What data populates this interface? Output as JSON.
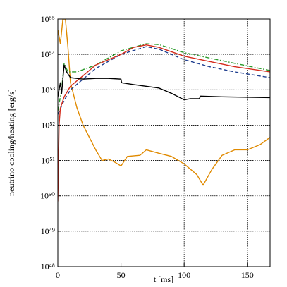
{
  "chart_data": {
    "type": "line",
    "xlabel": "t [ms]",
    "ylabel": "neutrino cooling/heating [erg/s]",
    "xlim": [
      0,
      168
    ],
    "xticks": [
      0,
      50,
      100,
      150
    ],
    "ylim": [
      1e+48,
      1e+55
    ],
    "yticks": [
      {
        "value": 1e+48,
        "label": "10⁴⁸"
      },
      {
        "value": 1e+49,
        "label": "10⁴⁹"
      },
      {
        "value": 1e+50,
        "label": "10⁵⁰"
      },
      {
        "value": 1e+51,
        "label": "10⁵¹"
      },
      {
        "value": 1e+52,
        "label": "10⁵²"
      },
      {
        "value": 1e+53,
        "label": "10⁵³"
      },
      {
        "value": 1e+54,
        "label": "10⁵⁴"
      },
      {
        "value": 1e+55,
        "label": "10⁵⁵"
      }
    ],
    "ylog": true,
    "grid": true,
    "series": [
      {
        "color": "#e08a00",
        "linestyle": "solid",
        "x": [
          0,
          2,
          4,
          6,
          8,
          10,
          15,
          20,
          30,
          35,
          40,
          45,
          50,
          55,
          65,
          70,
          80,
          90,
          100,
          110,
          115,
          122,
          130,
          140,
          150,
          160,
          168
        ],
        "values": [
          5e+54,
          2e+54,
          1e+55,
          1e+55,
          1.6e+54,
          1.6e+53,
          3.2e+52,
          1e+52,
          2e+51,
          1e+51,
          1.1e+51,
          9e+50,
          7e+50,
          1.3e+51,
          1.4e+51,
          2e+51,
          1.6e+51,
          1.3e+51,
          8e+50,
          4e+50,
          2e+50,
          5.6e+50,
          1.4e+51,
          2e+51,
          2e+51,
          2.8e+51,
          4.5e+51
        ]
      },
      {
        "color": "#1f3f8f",
        "linestyle": "dashed",
        "x": [
          0,
          5,
          10,
          20,
          30,
          50,
          70,
          80,
          100,
          120,
          140,
          168
        ],
        "values": [
          2e+52,
          5e+52,
          1e+53,
          2e+53,
          4e+53,
          1e+54,
          1.66e+54,
          1.41e+54,
          7.1e+53,
          4.5e+53,
          3.2e+53,
          2.2e+53
        ]
      },
      {
        "color": "#2a9a2a",
        "linestyle": "dashdot",
        "x": [
          0,
          3,
          5,
          8,
          15,
          30,
          50,
          70,
          80,
          100,
          120,
          140,
          168
        ],
        "values": [
          2.5e+52,
          1e+53,
          5.6e+53,
          3.2e+53,
          3.2e+53,
          5e+53,
          1.26e+54,
          2e+54,
          1.9e+54,
          1.12e+54,
          7.9e+53,
          5.6e+53,
          3.5e+53
        ]
      },
      {
        "color": "#d42a1a",
        "linestyle": "solid",
        "x": [
          0,
          1,
          2,
          5,
          10,
          20,
          30,
          50,
          60,
          70,
          80,
          100,
          120,
          140,
          168
        ],
        "values": [
          7e+49,
          1e+52,
          3e+52,
          6.3e+52,
          1.26e+53,
          2.5e+53,
          5e+53,
          1e+54,
          1.58e+54,
          1.86e+54,
          1.58e+54,
          8.9e+53,
          6.3e+53,
          4.5e+53,
          3.2e+53
        ]
      },
      {
        "color": "#000000",
        "linestyle": "solid",
        "x": [
          0,
          2,
          3,
          5,
          7,
          10,
          20,
          30,
          40,
          50,
          50.5,
          60,
          80,
          90,
          100,
          105,
          112,
          113,
          130,
          168
        ],
        "values": [
          6.3e+52,
          1.58e+53,
          7.9e+52,
          5e+53,
          3.2e+53,
          2.2e+53,
          2e+53,
          2.1e+53,
          2.1e+53,
          2e+53,
          1.58e+53,
          1.4e+53,
          1.12e+53,
          7.9e+52,
          5.2e+52,
          5.6e+52,
          5.6e+52,
          6.6e+52,
          6.3e+52,
          6e+52
        ]
      }
    ]
  }
}
